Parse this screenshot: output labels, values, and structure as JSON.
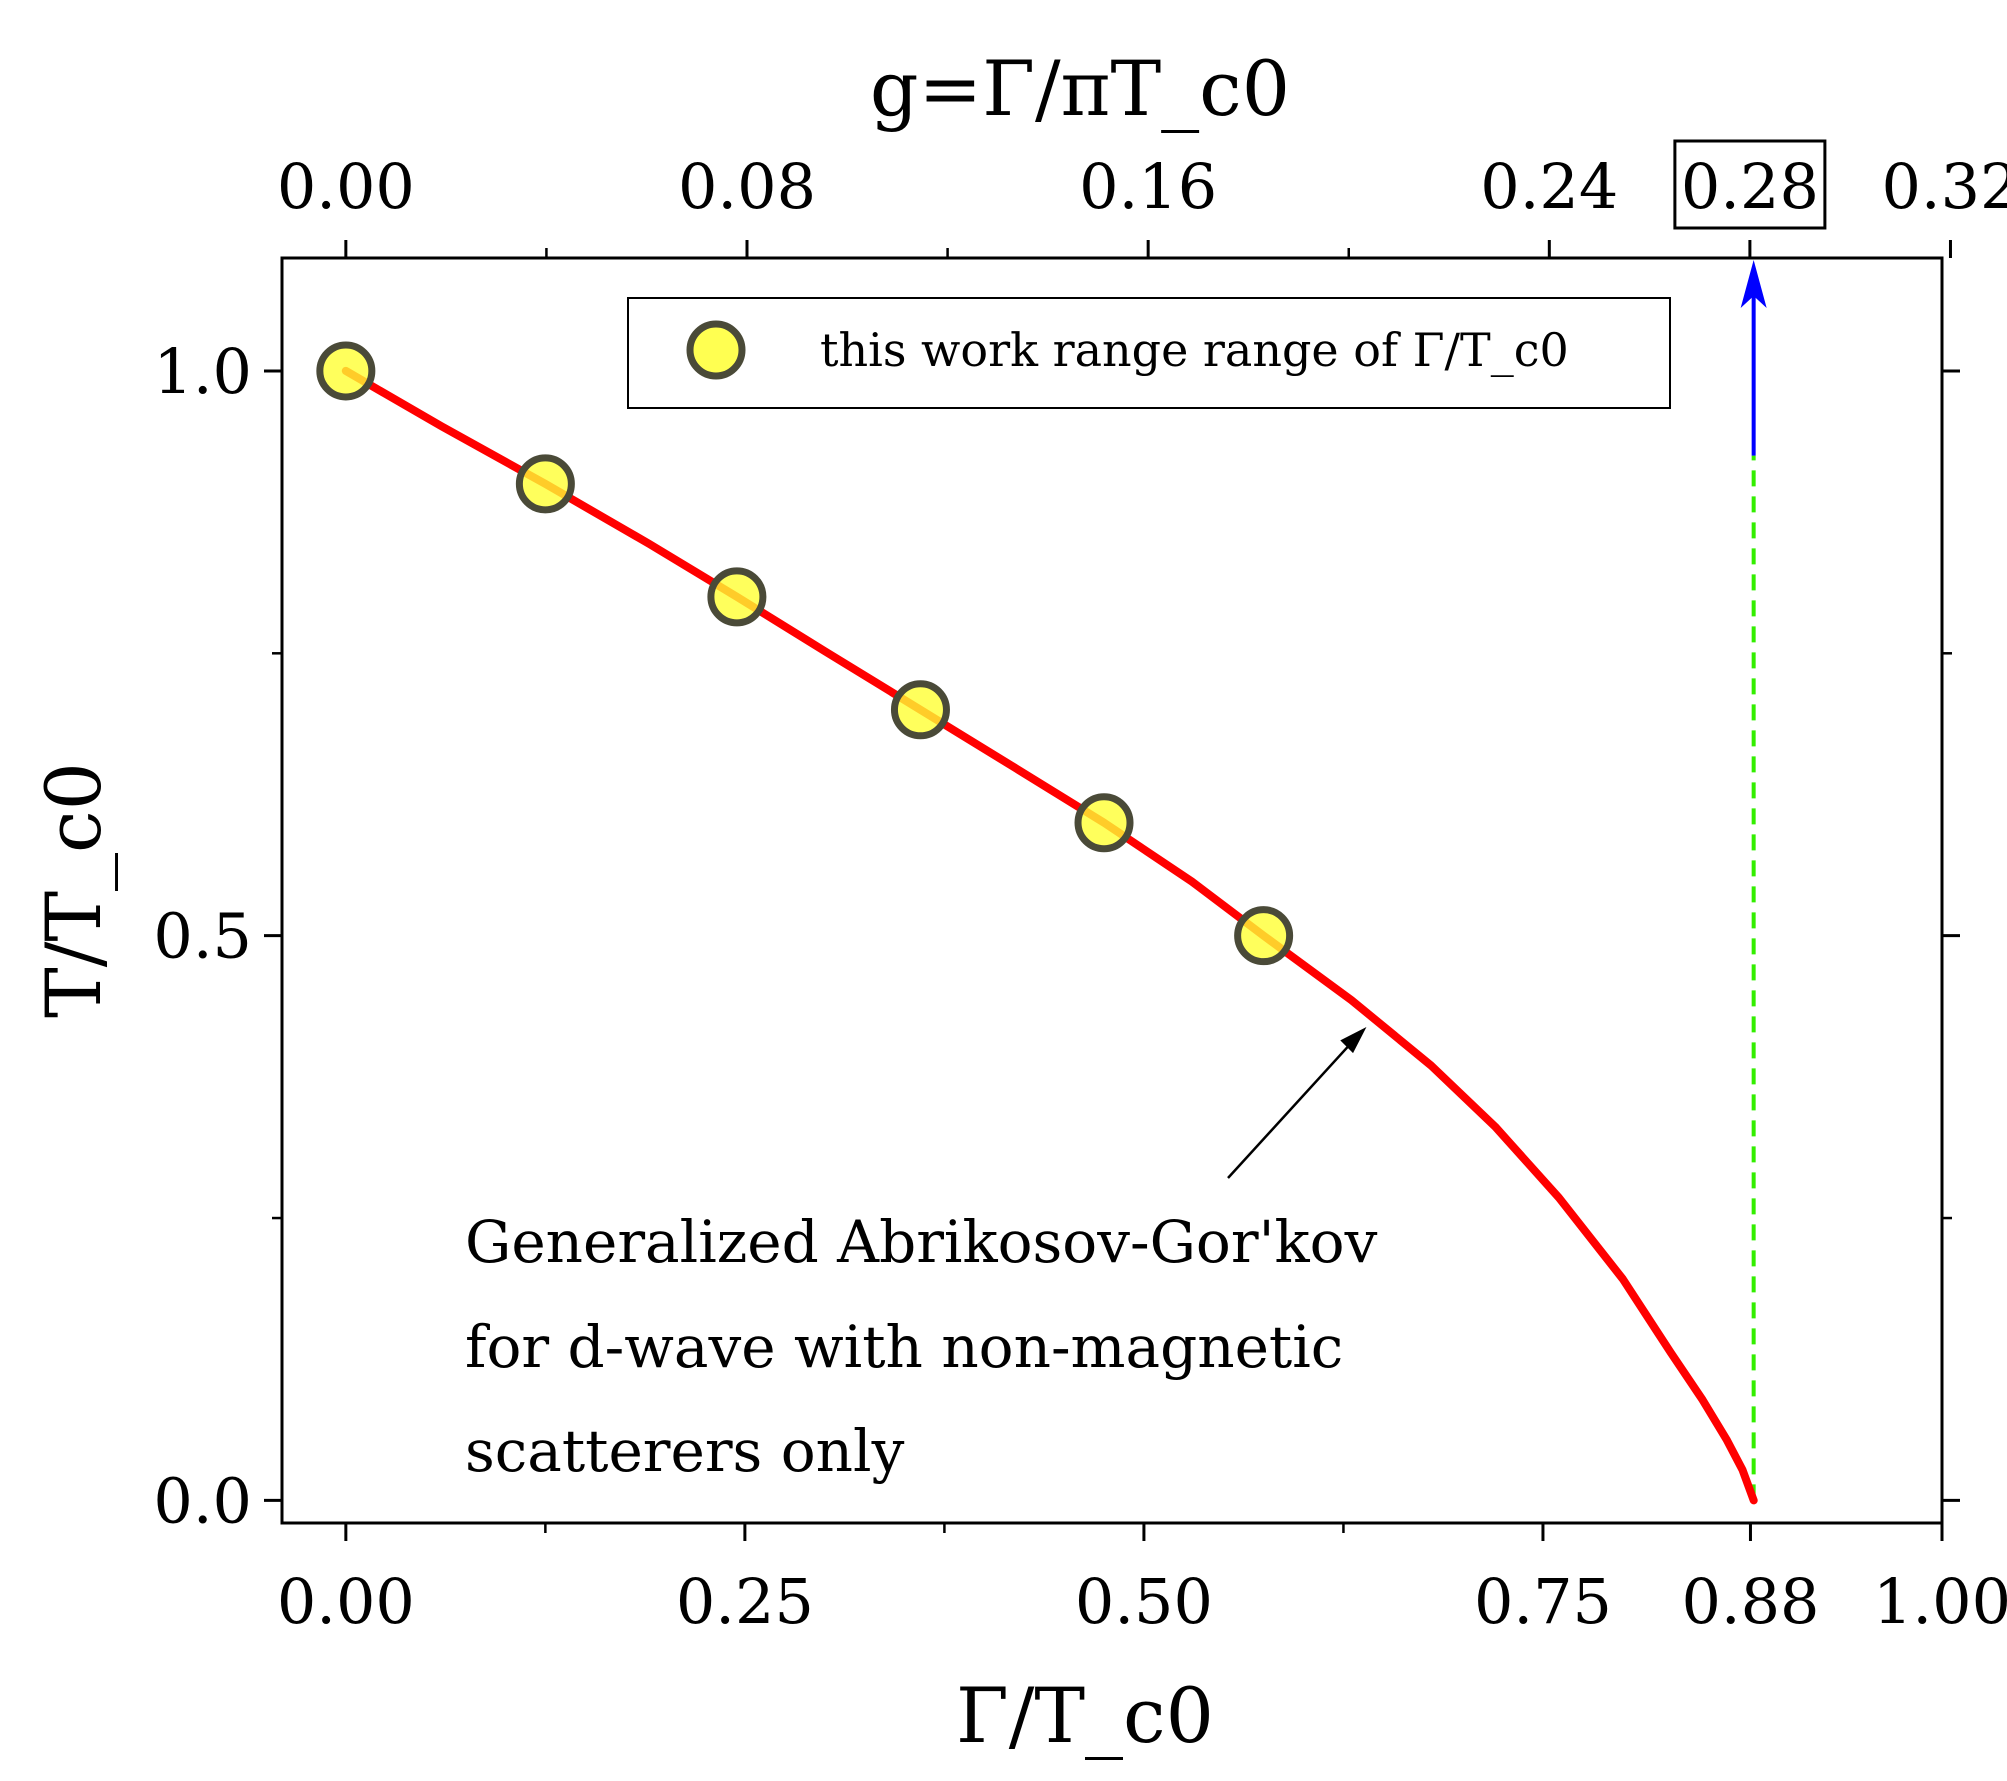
{
  "chart_data": {
    "type": "line",
    "xlabel": "Γ/T_c0",
    "ylabel": "T/T_c0",
    "top_xlabel": "g=Γ/πT_c0",
    "xlim": [
      -0.04,
      1.0
    ],
    "ylim": [
      -0.02,
      1.1
    ],
    "x_ticks": [
      0.0,
      0.25,
      0.5,
      0.75,
      0.88,
      1.0
    ],
    "x_tick_labels": [
      "0.00",
      "0.25",
      "0.50",
      "0.75",
      "0.88",
      "1.00"
    ],
    "y_ticks": [
      0.0,
      0.5,
      1.0
    ],
    "y_tick_labels": [
      "0.0",
      "0.5",
      "1.0"
    ],
    "top_ticks_g": [
      0.0,
      0.08,
      0.16,
      0.24,
      0.28,
      0.32
    ],
    "top_tick_labels": [
      "0.00",
      "0.08",
      "0.16",
      "0.24",
      "0.28",
      "0.32"
    ],
    "top_boxed_tick": "0.28",
    "series": [
      {
        "name": "Generalized Abrikosov-Gor'kov",
        "kind": "line",
        "color": "#ff0000",
        "x": [
          0.0,
          0.06,
          0.125,
          0.19,
          0.245,
          0.3,
          0.36,
          0.42,
          0.475,
          0.53,
          0.575,
          0.63,
          0.68,
          0.72,
          0.76,
          0.8,
          0.83,
          0.85,
          0.865,
          0.875,
          0.882
        ],
        "y": [
          1.0,
          0.951,
          0.9,
          0.847,
          0.8,
          0.752,
          0.7,
          0.648,
          0.6,
          0.548,
          0.5,
          0.443,
          0.385,
          0.331,
          0.268,
          0.196,
          0.131,
          0.089,
          0.054,
          0.027,
          0.0
        ]
      },
      {
        "name": "this work range range of Γ/T_c0",
        "kind": "scatter",
        "color": "#ffff33",
        "edge_color": "#4a4a38",
        "x": [
          0.0,
          0.125,
          0.245,
          0.36,
          0.475,
          0.575
        ],
        "y": [
          1.0,
          0.9,
          0.8,
          0.7,
          0.6,
          0.5
        ]
      }
    ],
    "critical_x": 0.882,
    "dashed_line": {
      "color": "#33ee00",
      "y_from": 0.0,
      "y_to": 0.925
    },
    "arrow_up": {
      "color": "#0000ff",
      "y_from": 0.925,
      "y_to": 1.1
    },
    "legend": {
      "position": "top-center",
      "label": "this work range range of Γ/T_c0"
    },
    "annotation": {
      "lines": [
        "Generalized Abrikosov-Gor'kov",
        "for d-wave with non-magnetic",
        "scatterers only"
      ],
      "arrow_target": [
        0.64,
        0.42
      ]
    }
  }
}
